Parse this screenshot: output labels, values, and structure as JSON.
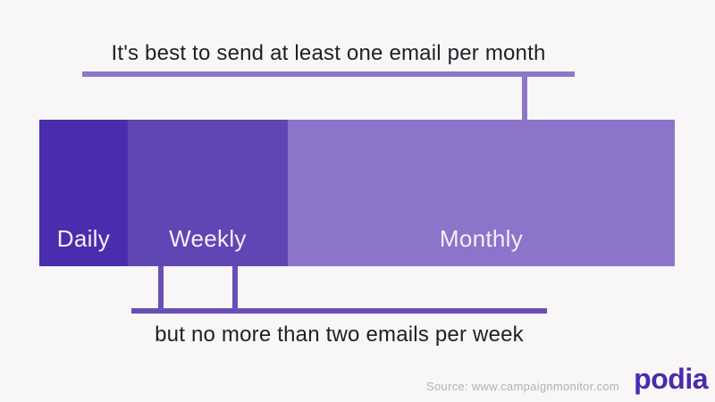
{
  "background": "#f9f6f7",
  "chart_data": {
    "type": "bar",
    "orientation": "horizontal-stacked",
    "title": "It's best to send at least one email per month",
    "categories": [
      "Daily",
      "Weekly",
      "Monthly"
    ],
    "values": [
      13.9,
      25.2,
      60.9
    ],
    "unit": "percent of bar width",
    "segments": [
      {
        "label": "Daily",
        "width_pct": 13.9,
        "color": "#4a2dad"
      },
      {
        "label": "Weekly",
        "width_pct": 25.2,
        "color": "#5f46b4"
      },
      {
        "label": "Monthly",
        "width_pct": 60.9,
        "color": "#8b74ca"
      }
    ],
    "annotations": [
      {
        "text": "It's best to send at least one email per month",
        "position": "top",
        "points_to": "Monthly"
      },
      {
        "text": "but no more than two emails per week",
        "position": "bottom",
        "points_to": "Weekly"
      }
    ],
    "legend": "none",
    "grid": false
  },
  "colors": {
    "top_bracket": "#8d77c8",
    "bottom_bracket": "#6a4eb8",
    "annotation_text": "#211f26",
    "segment_label_text": "#f3effa",
    "source_text": "#b3b1b6",
    "brand": "#4b2aad"
  },
  "footer": {
    "source": "Source: www.campaignmonitor.com",
    "brand": "podia"
  }
}
